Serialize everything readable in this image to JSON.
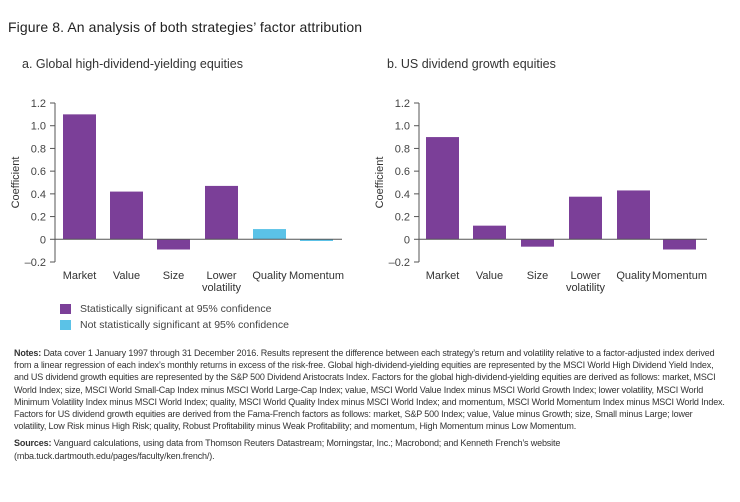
{
  "title": "Figure 8. An analysis of both strategies’ factor attribution",
  "colors": {
    "significant": "#7b3f98",
    "not_significant": "#5bc2e7"
  },
  "legend": {
    "significant": "Statistically significant at 95% confidence",
    "not_significant": "Not statistically significant at 95% confidence"
  },
  "chart_data": [
    {
      "type": "bar",
      "title": "a. Global high-dividend-yielding equities",
      "ylabel": "Coefficient",
      "ylim": [
        -0.2,
        1.2
      ],
      "yticks": [
        "1.2",
        "1.0",
        "0.8",
        "0.6",
        "0.4",
        "0.2",
        "0",
        "–0.2"
      ],
      "categories": [
        "Market",
        "Value",
        "Size",
        "Lower volatility",
        "Quality",
        "Momentum"
      ],
      "values": [
        1.1,
        0.42,
        -0.09,
        0.47,
        0.09,
        -0.015
      ],
      "significant": [
        true,
        true,
        true,
        true,
        false,
        false
      ]
    },
    {
      "type": "bar",
      "title": "b. US dividend growth equities",
      "ylabel": "Coefficient",
      "ylim": [
        -0.2,
        1.2
      ],
      "yticks": [
        "1.2",
        "1.0",
        "0.8",
        "0.6",
        "0.4",
        "0.2",
        "0",
        "–0.2"
      ],
      "categories": [
        "Market",
        "Value",
        "Size",
        "Lower volatility",
        "Quality",
        "Momentum"
      ],
      "values": [
        0.9,
        0.12,
        -0.065,
        0.375,
        0.43,
        -0.09
      ],
      "significant": [
        true,
        true,
        true,
        true,
        true,
        true
      ]
    }
  ],
  "notes": {
    "label": "Notes:",
    "text": " Data cover 1 January 1997 through 31 December 2016. Results represent the difference between each strategy’s return and volatility relative to a factor-adjusted index derived from a linear regression of each index’s monthly returns in excess of the risk-free. Global high-dividend-yielding equities are represented by the MSCI World High Dividend Yield Index, and US dividend growth equities are represented by the S&P 500 Dividend Aristocrats Index. Factors for the global high-dividend-yielding equities are derived as follows: market, MSCI World Index; size, MSCI World Small-Cap Index minus MSCI World Large-Cap Index; value, MSCI World Value Index minus MSCI World Growth Index; lower volatility, MSCI World Minimum Volatility Index minus MSCI World Index; quality, MSCI World Quality Index minus MSCI World Index; and momentum, MSCI World Momentum Index minus MSCI World Index. Factors for US dividend growth equities are derived from the Fama-French factors as follows: market, S&P 500 Index; value, Value minus Growth; size, Small minus Large; lower volatility, Low Risk minus High Risk; quality, Robust Profitability minus Weak Profitability; and momentum, High Momentum minus Low Momentum."
  },
  "sources": {
    "label": "Sources:",
    "text": " Vanguard calculations, using data from Thomson Reuters Datastream; Morningstar, Inc.; Macrobond; and Kenneth French’s website (mba.tuck.dartmouth.edu/pages/faculty/ken.french/)."
  }
}
